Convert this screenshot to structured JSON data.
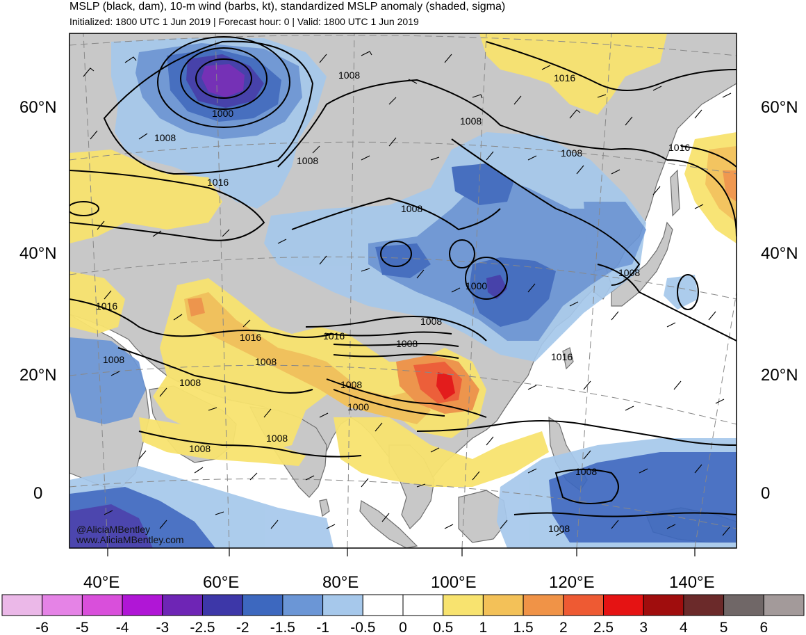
{
  "header": {
    "title": "MSLP (black, dam), 10-m wind (barbs, kt), standardized MSLP anomaly (shaded, sigma)",
    "subtitle": "Initialized: 1800 UTC 1 Jun 2019 | Forecast hour: 0 | Valid: 1800 UTC 1 Jun 2019"
  },
  "map": {
    "lat_labels": [
      "60°N",
      "40°N",
      "20°N",
      "0"
    ],
    "lon_labels": [
      "40°E",
      "60°E",
      "80°E",
      "100°E",
      "120°E",
      "140°E"
    ],
    "contour_labels": [
      "1008",
      "1016",
      "1000",
      "1008",
      "1016",
      "1008",
      "1008",
      "1008",
      "1016",
      "1008",
      "1000",
      "1008",
      "1016",
      "1016",
      "1008",
      "1016",
      "1008",
      "1000",
      "1008",
      "1008",
      "1016",
      "1008",
      "1008",
      "1008"
    ],
    "credit_line1": "@AliciaMBentley",
    "credit_line2": "www.AliciaMBentley.com",
    "colors": {
      "land": "#c8c8c8",
      "ocean": "#ffffff",
      "coast": "#6e6e6e"
    }
  },
  "colorbar": {
    "labels": [
      "-6",
      "-5",
      "-4",
      "-3",
      "-2.5",
      "-2",
      "-1.5",
      "-1",
      "-0.5",
      "0",
      "0.5",
      "1",
      "1.5",
      "2",
      "2.5",
      "3",
      "4",
      "5",
      "6"
    ],
    "colors": [
      "#ebb8e8",
      "#e583e6",
      "#d94fdb",
      "#b016d6",
      "#6e25b5",
      "#3d37a8",
      "#3d68bf",
      "#6b96d6",
      "#a6c8eb",
      "#ffffff",
      "#ffffff",
      "#f8e36f",
      "#f3c158",
      "#f09347",
      "#ee5a33",
      "#e51313",
      "#a00d0d",
      "#6b2a2a",
      "#706767",
      "#a39a9a"
    ]
  }
}
